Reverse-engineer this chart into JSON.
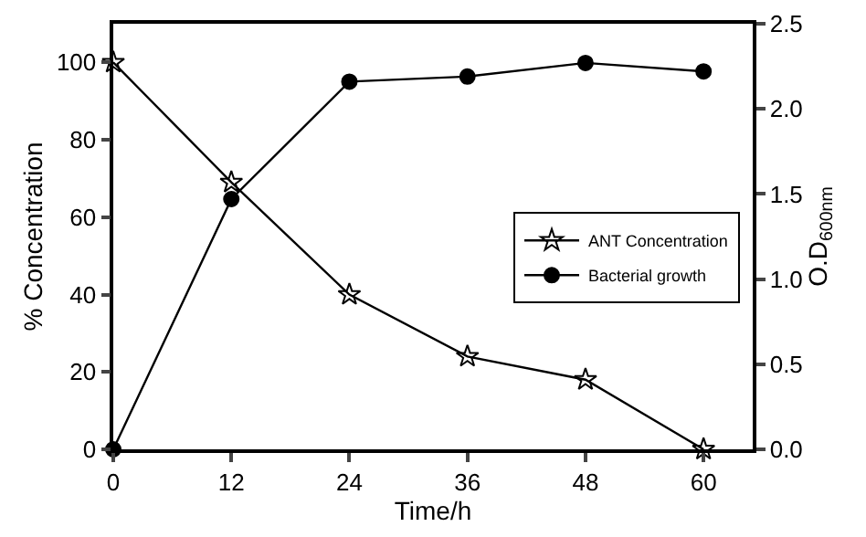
{
  "chart_data": {
    "type": "line",
    "xlabel": "Time/h",
    "ylabel": "% Concentration",
    "y2label": "O.D$_{600nm}$",
    "x": [
      0,
      12,
      24,
      36,
      48,
      60
    ],
    "xlim": [
      0,
      65
    ],
    "xticks": [
      0,
      12,
      24,
      36,
      48,
      60
    ],
    "ylim": [
      0,
      110
    ],
    "yticks": [
      0,
      20,
      40,
      60,
      80,
      100
    ],
    "y2lim": [
      0,
      2.5
    ],
    "y2ticks": [
      {
        "value": 0,
        "label": "0.0"
      },
      {
        "value": 0.5,
        "label": "0.5"
      },
      {
        "value": 1,
        "label": "1.0"
      },
      {
        "value": 1.5,
        "label": "1.5"
      },
      {
        "value": 2,
        "label": "2.0"
      },
      {
        "value": 2.5,
        "label": "2.5"
      }
    ],
    "series": [
      {
        "name": "ANT Concentration",
        "color": "#000000",
        "marker": "star",
        "values": [
          100,
          69,
          40,
          24,
          18,
          0
        ]
      },
      {
        "name": "Bacterial growth",
        "color": "#000000",
        "marker": "circle",
        "axis": "y2",
        "values": [
          0,
          1.47,
          2.16,
          2.19,
          2.27,
          2.22
        ]
      }
    ],
    "legend": "right"
  }
}
